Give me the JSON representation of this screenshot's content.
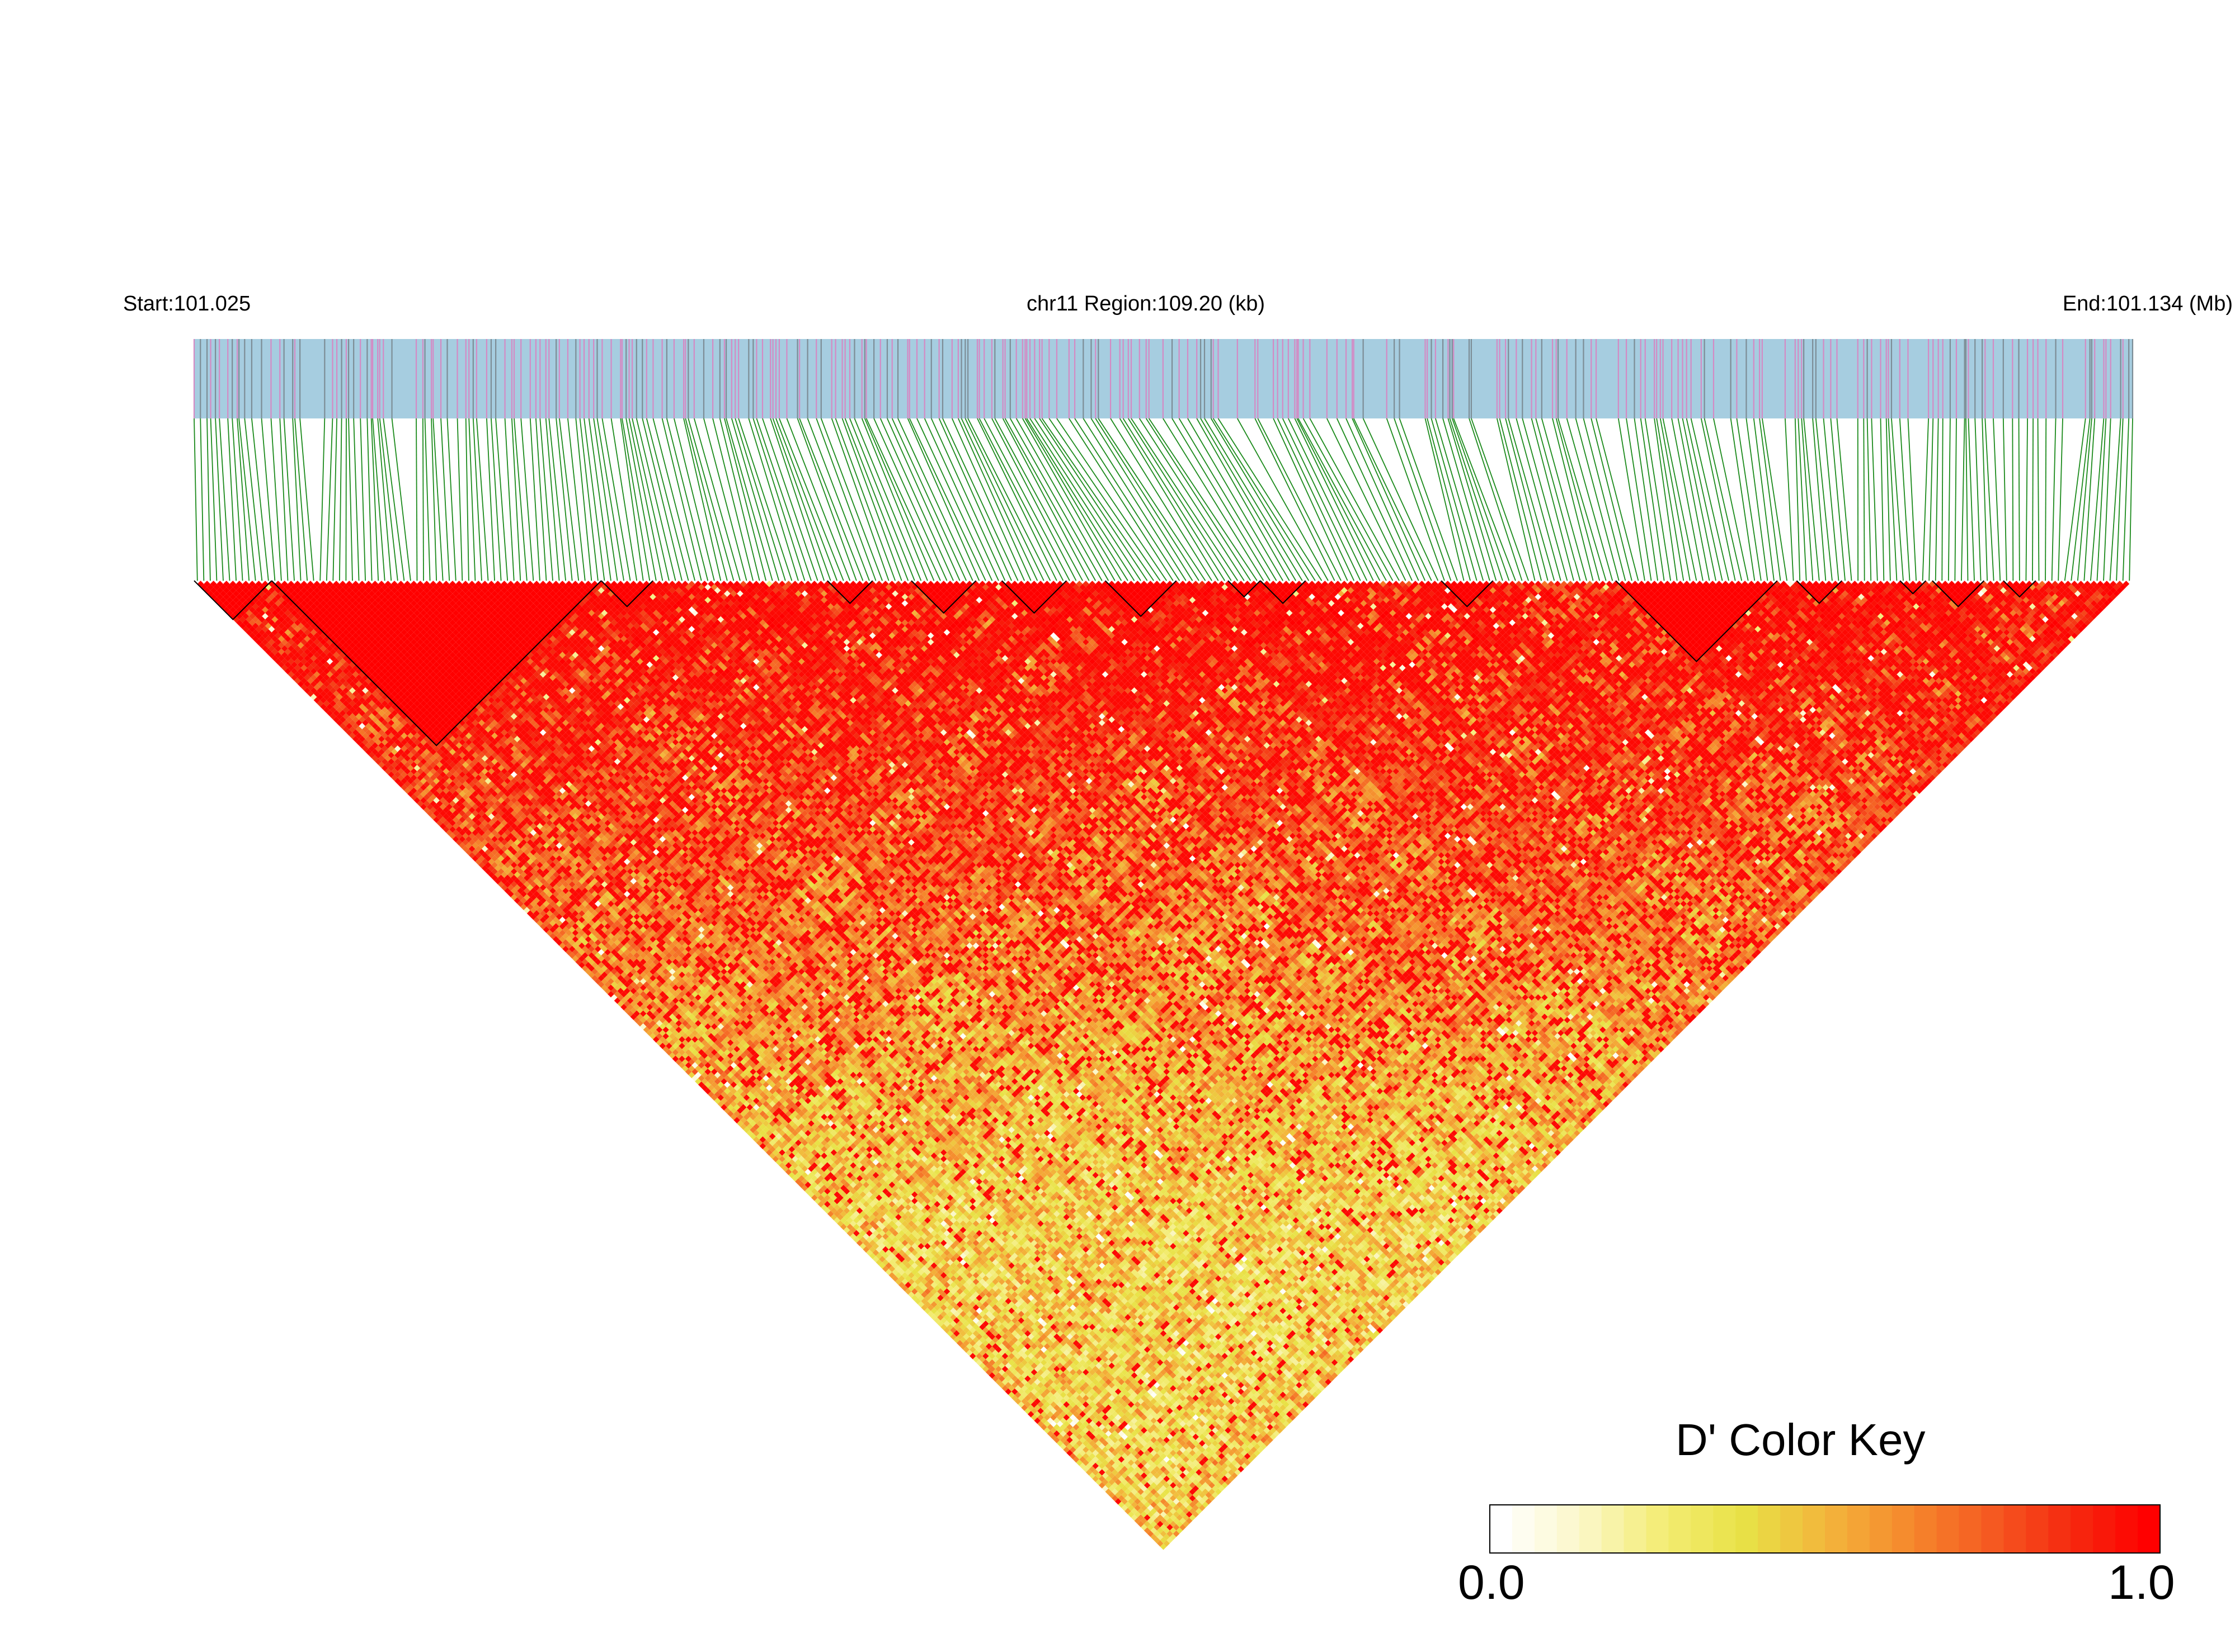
{
  "header": {
    "start_label": "Start:101.025",
    "region_label": "chr11 Region:109.20 (kb)",
    "end_label": "End:101.134 (Mb)"
  },
  "color_key": {
    "title": "D' Color Key",
    "min_label": "0.0",
    "max_label": "1.0",
    "min": 0.0,
    "max": 1.0,
    "gradient": [
      "#ffffff",
      "#fbf7c8",
      "#f3ec74",
      "#e8e246",
      "#f3b63c",
      "#f58a2d",
      "#f55c22",
      "#f52b10",
      "#ff0000"
    ]
  },
  "colors": {
    "track_background": "#a6cde0",
    "snp_tick_pink": "#d48ac4",
    "snp_tick_gray": "#7d8d96",
    "connector_green": "#1b8a1b",
    "block_outline": "#000000",
    "high_ld": "#ff0000"
  },
  "chart_data": {
    "type": "heatmap",
    "chromosome": "chr11",
    "region_start_mb": 101.025,
    "region_end_mb": 101.134,
    "region_length_kb": 109.2,
    "n_snps": 300,
    "value_name": "D'",
    "value_range": [
      0.0,
      1.0
    ],
    "legend_position": "bottom-right",
    "ld_blocks_snp_ranges": [
      [
        0,
        11
      ],
      [
        12,
        62
      ],
      [
        63,
        70
      ],
      [
        98,
        104
      ],
      [
        111,
        120
      ],
      [
        125,
        134
      ],
      [
        141,
        151
      ],
      [
        160,
        164
      ],
      [
        165,
        171
      ],
      [
        193,
        200
      ],
      [
        220,
        244
      ],
      [
        248,
        254
      ],
      [
        264,
        267
      ],
      [
        269,
        276
      ],
      [
        280,
        284
      ]
    ]
  }
}
